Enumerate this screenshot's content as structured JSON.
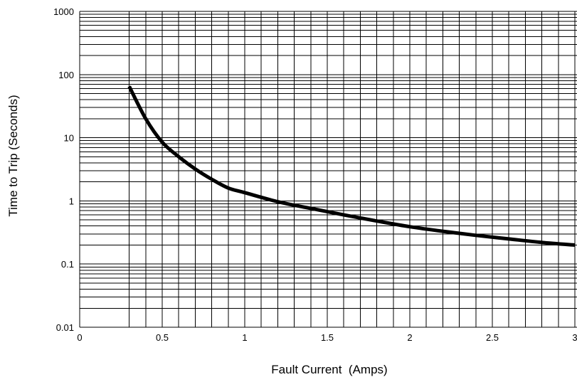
{
  "chart_data": {
    "type": "line",
    "title": "",
    "xlabel": "Fault Current  (Amps)",
    "ylabel": "Time to Trip (Seconds)",
    "xlim": [
      0,
      3
    ],
    "ylim": [
      0.01,
      1000
    ],
    "y_scale": "log",
    "grid": true,
    "x_ticks": [
      {
        "value": 0,
        "label": "0"
      },
      {
        "value": 0.5,
        "label": "0.5"
      },
      {
        "value": 1,
        "label": "1"
      },
      {
        "value": 1.5,
        "label": "1.5"
      },
      {
        "value": 2,
        "label": "2"
      },
      {
        "value": 2.5,
        "label": "2.5"
      },
      {
        "value": 3,
        "label": "3"
      }
    ],
    "y_ticks": [
      {
        "value": 0.01,
        "label": "0.01"
      },
      {
        "value": 0.1,
        "label": "0.1"
      },
      {
        "value": 1,
        "label": "1"
      },
      {
        "value": 10,
        "label": "10"
      },
      {
        "value": 100,
        "label": "100"
      },
      {
        "value": 1000,
        "label": "1000"
      }
    ],
    "x_minor_gridlines": [
      0.3,
      0.4,
      0.6,
      0.7,
      0.8,
      0.9,
      1.1,
      1.2,
      1.3,
      1.4,
      1.6,
      1.7,
      1.8,
      1.9,
      2.1,
      2.2,
      2.3,
      2.4,
      2.6,
      2.7,
      2.8,
      2.9
    ],
    "series": [
      {
        "color": "#000000",
        "points": [
          {
            "x": 0.3,
            "y": 65
          },
          {
            "x": 0.4,
            "y": 20
          },
          {
            "x": 0.5,
            "y": 8.5
          },
          {
            "x": 0.6,
            "y": 5.0
          },
          {
            "x": 0.7,
            "y": 3.2
          },
          {
            "x": 0.8,
            "y": 2.2
          },
          {
            "x": 0.9,
            "y": 1.6
          },
          {
            "x": 1.0,
            "y": 1.35
          },
          {
            "x": 1.2,
            "y": 0.97
          },
          {
            "x": 1.4,
            "y": 0.76
          },
          {
            "x": 1.6,
            "y": 0.6
          },
          {
            "x": 1.8,
            "y": 0.48
          },
          {
            "x": 2.0,
            "y": 0.39
          },
          {
            "x": 2.2,
            "y": 0.33
          },
          {
            "x": 2.4,
            "y": 0.285
          },
          {
            "x": 2.6,
            "y": 0.25
          },
          {
            "x": 2.8,
            "y": 0.22
          },
          {
            "x": 3.0,
            "y": 0.2
          }
        ]
      }
    ]
  }
}
